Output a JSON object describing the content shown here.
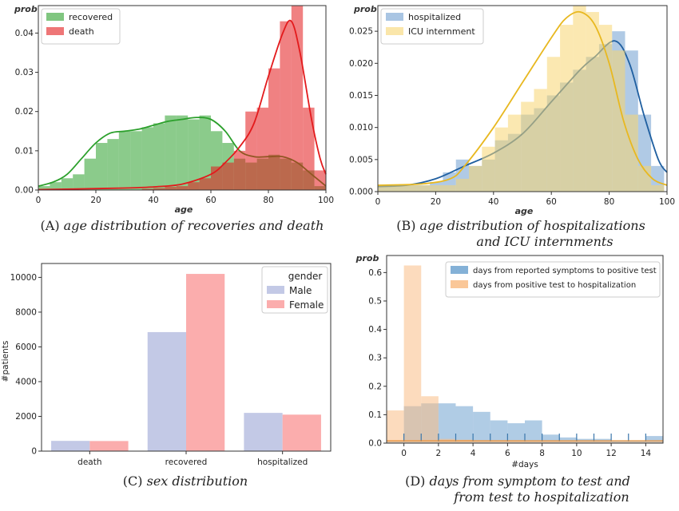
{
  "chart_data": [
    {
      "id": "A",
      "type": "histogram",
      "caption_prefix": "(A) ",
      "caption_lines": [
        "age distribution of recoveries and death"
      ],
      "xlabel": "age",
      "ylabel": "prob",
      "xlim": [
        0,
        100
      ],
      "ylim": [
        0,
        0.047
      ],
      "xticks": [
        0,
        20,
        40,
        60,
        80,
        100
      ],
      "yticks": [
        0.0,
        0.01,
        0.02,
        0.03,
        0.04
      ],
      "ytick_labels": [
        "0.00",
        "0.01",
        "0.02",
        "0.03",
        "0.04"
      ],
      "legend_position": "top-left",
      "series": [
        {
          "name": "recovered",
          "color": "#2ca02c",
          "bin_width": 4.0,
          "bin_starts": [
            0,
            4,
            8,
            12,
            16,
            20,
            24,
            28,
            32,
            36,
            40,
            44,
            48,
            52,
            56,
            60,
            64,
            68,
            72,
            76,
            80,
            84,
            88,
            92,
            96
          ],
          "values": [
            0.001,
            0.002,
            0.003,
            0.004,
            0.008,
            0.012,
            0.013,
            0.015,
            0.015,
            0.016,
            0.017,
            0.019,
            0.019,
            0.018,
            0.019,
            0.015,
            0.012,
            0.008,
            0.007,
            0.008,
            0.009,
            0.008,
            0.007,
            0.005,
            0.001
          ],
          "kde": [
            [
              0,
              0.001
            ],
            [
              5,
              0.002
            ],
            [
              10,
              0.004
            ],
            [
              15,
              0.008
            ],
            [
              20,
              0.012
            ],
            [
              25,
              0.0145
            ],
            [
              30,
              0.015
            ],
            [
              35,
              0.0155
            ],
            [
              40,
              0.0165
            ],
            [
              45,
              0.0175
            ],
            [
              50,
              0.018
            ],
            [
              55,
              0.0185
            ],
            [
              60,
              0.018
            ],
            [
              65,
              0.015
            ],
            [
              70,
              0.01
            ],
            [
              75,
              0.0085
            ],
            [
              80,
              0.0085
            ],
            [
              85,
              0.0085
            ],
            [
              90,
              0.007
            ],
            [
              95,
              0.004
            ],
            [
              100,
              0.001
            ]
          ]
        },
        {
          "name": "death",
          "color": "#e31a1c",
          "bin_width": 4.0,
          "bin_starts": [
            36,
            40,
            44,
            48,
            52,
            56,
            60,
            64,
            68,
            72,
            76,
            80,
            84,
            88,
            92,
            96
          ],
          "values": [
            0.0003,
            0.0005,
            0.0008,
            0.001,
            0.002,
            0.003,
            0.006,
            0.007,
            0.01,
            0.02,
            0.021,
            0.031,
            0.043,
            0.047,
            0.021,
            0.005
          ],
          "kde": [
            [
              0,
              0.0001
            ],
            [
              30,
              0.0005
            ],
            [
              40,
              0.0008
            ],
            [
              50,
              0.0015
            ],
            [
              60,
              0.004
            ],
            [
              65,
              0.007
            ],
            [
              70,
              0.011
            ],
            [
              75,
              0.017
            ],
            [
              80,
              0.029
            ],
            [
              85,
              0.04
            ],
            [
              88,
              0.043
            ],
            [
              91,
              0.035
            ],
            [
              95,
              0.018
            ],
            [
              98,
              0.008
            ],
            [
              100,
              0.004
            ]
          ]
        }
      ]
    },
    {
      "id": "B",
      "type": "histogram",
      "caption_prefix": "(B) ",
      "caption_lines": [
        "age distribution of hospitalizations",
        "and ICU internments"
      ],
      "xlabel": "age",
      "ylabel": "prob",
      "xlim": [
        0,
        100
      ],
      "ylim": [
        0,
        0.029
      ],
      "xticks": [
        0,
        20,
        40,
        60,
        80,
        100
      ],
      "yticks": [
        0.0,
        0.005,
        0.01,
        0.015,
        0.02,
        0.025
      ],
      "ytick_labels": [
        "0.000",
        "0.005",
        "0.010",
        "0.015",
        "0.020",
        "0.025"
      ],
      "legend_position": "top-left",
      "series": [
        {
          "name": "hospitalized",
          "color": "#1f5fa0",
          "fill_color": "#6f9fd0",
          "bin_width": 4.5,
          "bin_starts": [
            0,
            4.5,
            9,
            13.5,
            18,
            22.5,
            27,
            31.5,
            36,
            40.5,
            45,
            49.5,
            54,
            58.5,
            63,
            67.5,
            72,
            76.5,
            81,
            85.5,
            90,
            94.5
          ],
          "values": [
            0.001,
            0.001,
            0.001,
            0.001,
            0.0015,
            0.003,
            0.005,
            0.004,
            0.005,
            0.008,
            0.009,
            0.012,
            0.013,
            0.015,
            0.017,
            0.019,
            0.021,
            0.023,
            0.025,
            0.022,
            0.012,
            0.004
          ],
          "kde": [
            [
              0,
              0.0008
            ],
            [
              10,
              0.001
            ],
            [
              20,
              0.002
            ],
            [
              30,
              0.004
            ],
            [
              40,
              0.006
            ],
            [
              50,
              0.009
            ],
            [
              60,
              0.014
            ],
            [
              70,
              0.019
            ],
            [
              75,
              0.021
            ],
            [
              82,
              0.0235
            ],
            [
              87,
              0.02
            ],
            [
              92,
              0.012
            ],
            [
              97,
              0.005
            ],
            [
              100,
              0.003
            ]
          ]
        },
        {
          "name": "ICU internment",
          "color": "#e8b820",
          "fill_color": "#f7d571",
          "bin_width": 4.5,
          "bin_starts": [
            0,
            4.5,
            9,
            13.5,
            18,
            22.5,
            27,
            31.5,
            36,
            40.5,
            45,
            49.5,
            54,
            58.5,
            63,
            67.5,
            72,
            76.5,
            81,
            85.5,
            90,
            94.5
          ],
          "values": [
            0.001,
            0.001,
            0.001,
            0.001,
            0.001,
            0.001,
            0.002,
            0.004,
            0.007,
            0.01,
            0.012,
            0.014,
            0.016,
            0.021,
            0.026,
            0.029,
            0.028,
            0.026,
            0.022,
            0.012,
            0.004,
            0.001
          ],
          "kde": [
            [
              0,
              0.001
            ],
            [
              15,
              0.0012
            ],
            [
              25,
              0.002
            ],
            [
              30,
              0.004
            ],
            [
              40,
              0.01
            ],
            [
              50,
              0.017
            ],
            [
              60,
              0.024
            ],
            [
              65,
              0.027
            ],
            [
              70,
              0.028
            ],
            [
              75,
              0.026
            ],
            [
              80,
              0.02
            ],
            [
              85,
              0.011
            ],
            [
              90,
              0.005
            ],
            [
              95,
              0.002
            ],
            [
              100,
              0.001
            ]
          ]
        }
      ]
    },
    {
      "id": "C",
      "type": "bar",
      "caption_prefix": "(C) ",
      "caption_lines": [
        "sex distribution"
      ],
      "xlabel": "",
      "ylabel": "#patients",
      "ylim": [
        0,
        10800
      ],
      "yticks": [
        0,
        2000,
        4000,
        6000,
        8000,
        10000
      ],
      "ytick_labels": [
        "0",
        "2000",
        "4000",
        "6000",
        "8000",
        "10000"
      ],
      "categories": [
        "death",
        "recovered",
        "hospitalized"
      ],
      "legend_title": "gender",
      "legend_position": "top-right",
      "series": [
        {
          "name": "Male",
          "color": "#c3c9e6",
          "values": [
            590,
            6850,
            2200
          ]
        },
        {
          "name": "Female",
          "color": "#fbadad",
          "values": [
            580,
            10200,
            2100
          ]
        }
      ]
    },
    {
      "id": "D",
      "type": "histogram",
      "caption_prefix": "(D) ",
      "caption_lines": [
        "days from symptom to test and",
        "from test to hospitalization"
      ],
      "xlabel": "#days",
      "ylabel": "prob",
      "xlim": [
        -1,
        15
      ],
      "ylim": [
        0,
        0.66
      ],
      "xticks": [
        0,
        2,
        4,
        6,
        8,
        10,
        12,
        14
      ],
      "yticks": [
        0.0,
        0.1,
        0.2,
        0.3,
        0.4,
        0.5,
        0.6
      ],
      "ytick_labels": [
        "0.0",
        "0.1",
        "0.2",
        "0.3",
        "0.4",
        "0.5",
        "0.6"
      ],
      "legend_position": "top-right",
      "rug_positions": [
        0,
        1,
        2,
        3,
        4,
        5,
        6,
        7,
        8,
        9,
        10,
        11,
        12,
        13,
        14
      ],
      "series": [
        {
          "name": "days from reported symptoms to positive test",
          "color": "#6fa3d0",
          "bin_width": 1.0,
          "bin_starts": [
            -1,
            0,
            1,
            2,
            3,
            4,
            5,
            6,
            7,
            8,
            9,
            10,
            11,
            12,
            13,
            14
          ],
          "values": [
            0.01,
            0.13,
            0.14,
            0.14,
            0.13,
            0.11,
            0.08,
            0.07,
            0.08,
            0.03,
            0.02,
            0.015,
            0.015,
            0.01,
            0.01,
            0.025
          ]
        },
        {
          "name": "days from positive test to hospitalization",
          "color": "#f9bd86",
          "bin_width": 1.0,
          "bin_starts": [
            -1,
            0,
            1,
            2,
            3,
            4,
            5,
            6,
            7,
            8,
            9,
            10,
            11,
            12,
            13,
            14
          ],
          "values": [
            0.115,
            0.625,
            0.165,
            0.015,
            0.012,
            0.01,
            0.01,
            0.01,
            0.008,
            0.008,
            0.007,
            0.006,
            0.006,
            0.005,
            0.005,
            0.005
          ]
        }
      ]
    }
  ]
}
